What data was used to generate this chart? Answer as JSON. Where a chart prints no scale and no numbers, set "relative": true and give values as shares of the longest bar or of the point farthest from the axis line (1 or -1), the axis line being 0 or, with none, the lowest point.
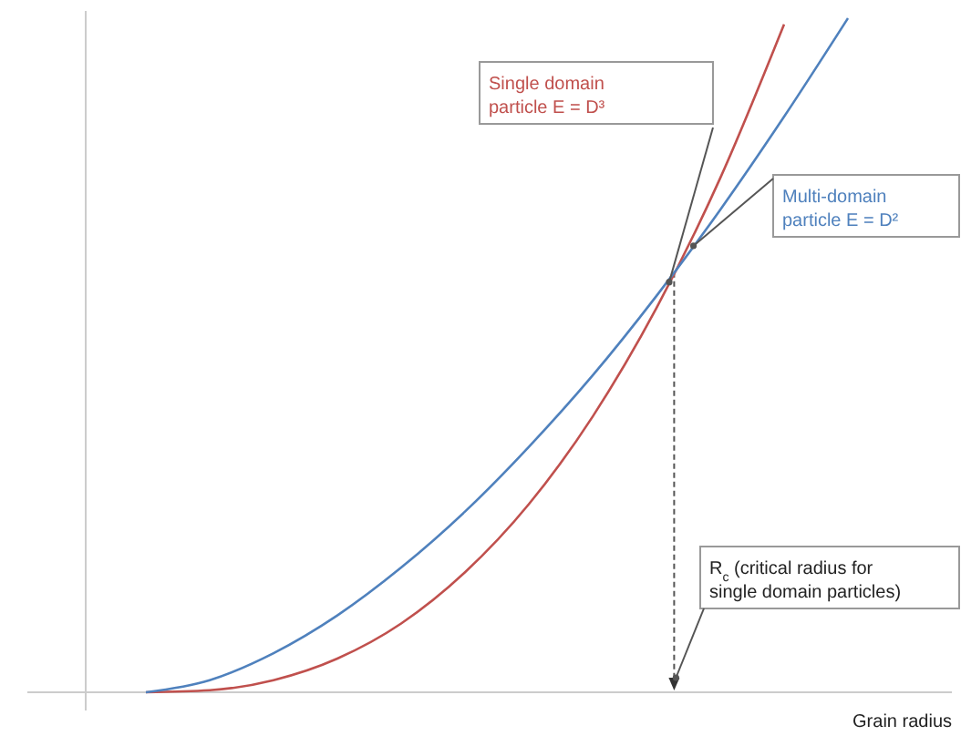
{
  "chart_data": {
    "type": "line",
    "relative": true,
    "xlabel": "Grain radius",
    "categories": [
      null,
      null,
      null,
      null,
      null,
      null,
      null,
      null,
      null,
      null,
      null,
      null
    ],
    "series": [
      {
        "name": "Single domain particle E = D³",
        "color": "#c0504d",
        "values": [
          0,
          0.003,
          0.018,
          0.05,
          0.102,
          0.178,
          0.279,
          0.409,
          0.57,
          0.763,
          0.991,
          null
        ]
      },
      {
        "name": "Multi-domain particle E = D²",
        "color": "#4f81bd",
        "values": [
          0,
          0.018,
          0.058,
          0.114,
          0.185,
          0.268,
          0.364,
          0.47,
          0.588,
          0.716,
          0.854,
          1
        ]
      }
    ],
    "annotations": [
      "R$_{c}$ (critical radius for single domain particles)"
    ],
    "line_style": "solid"
  }
}
